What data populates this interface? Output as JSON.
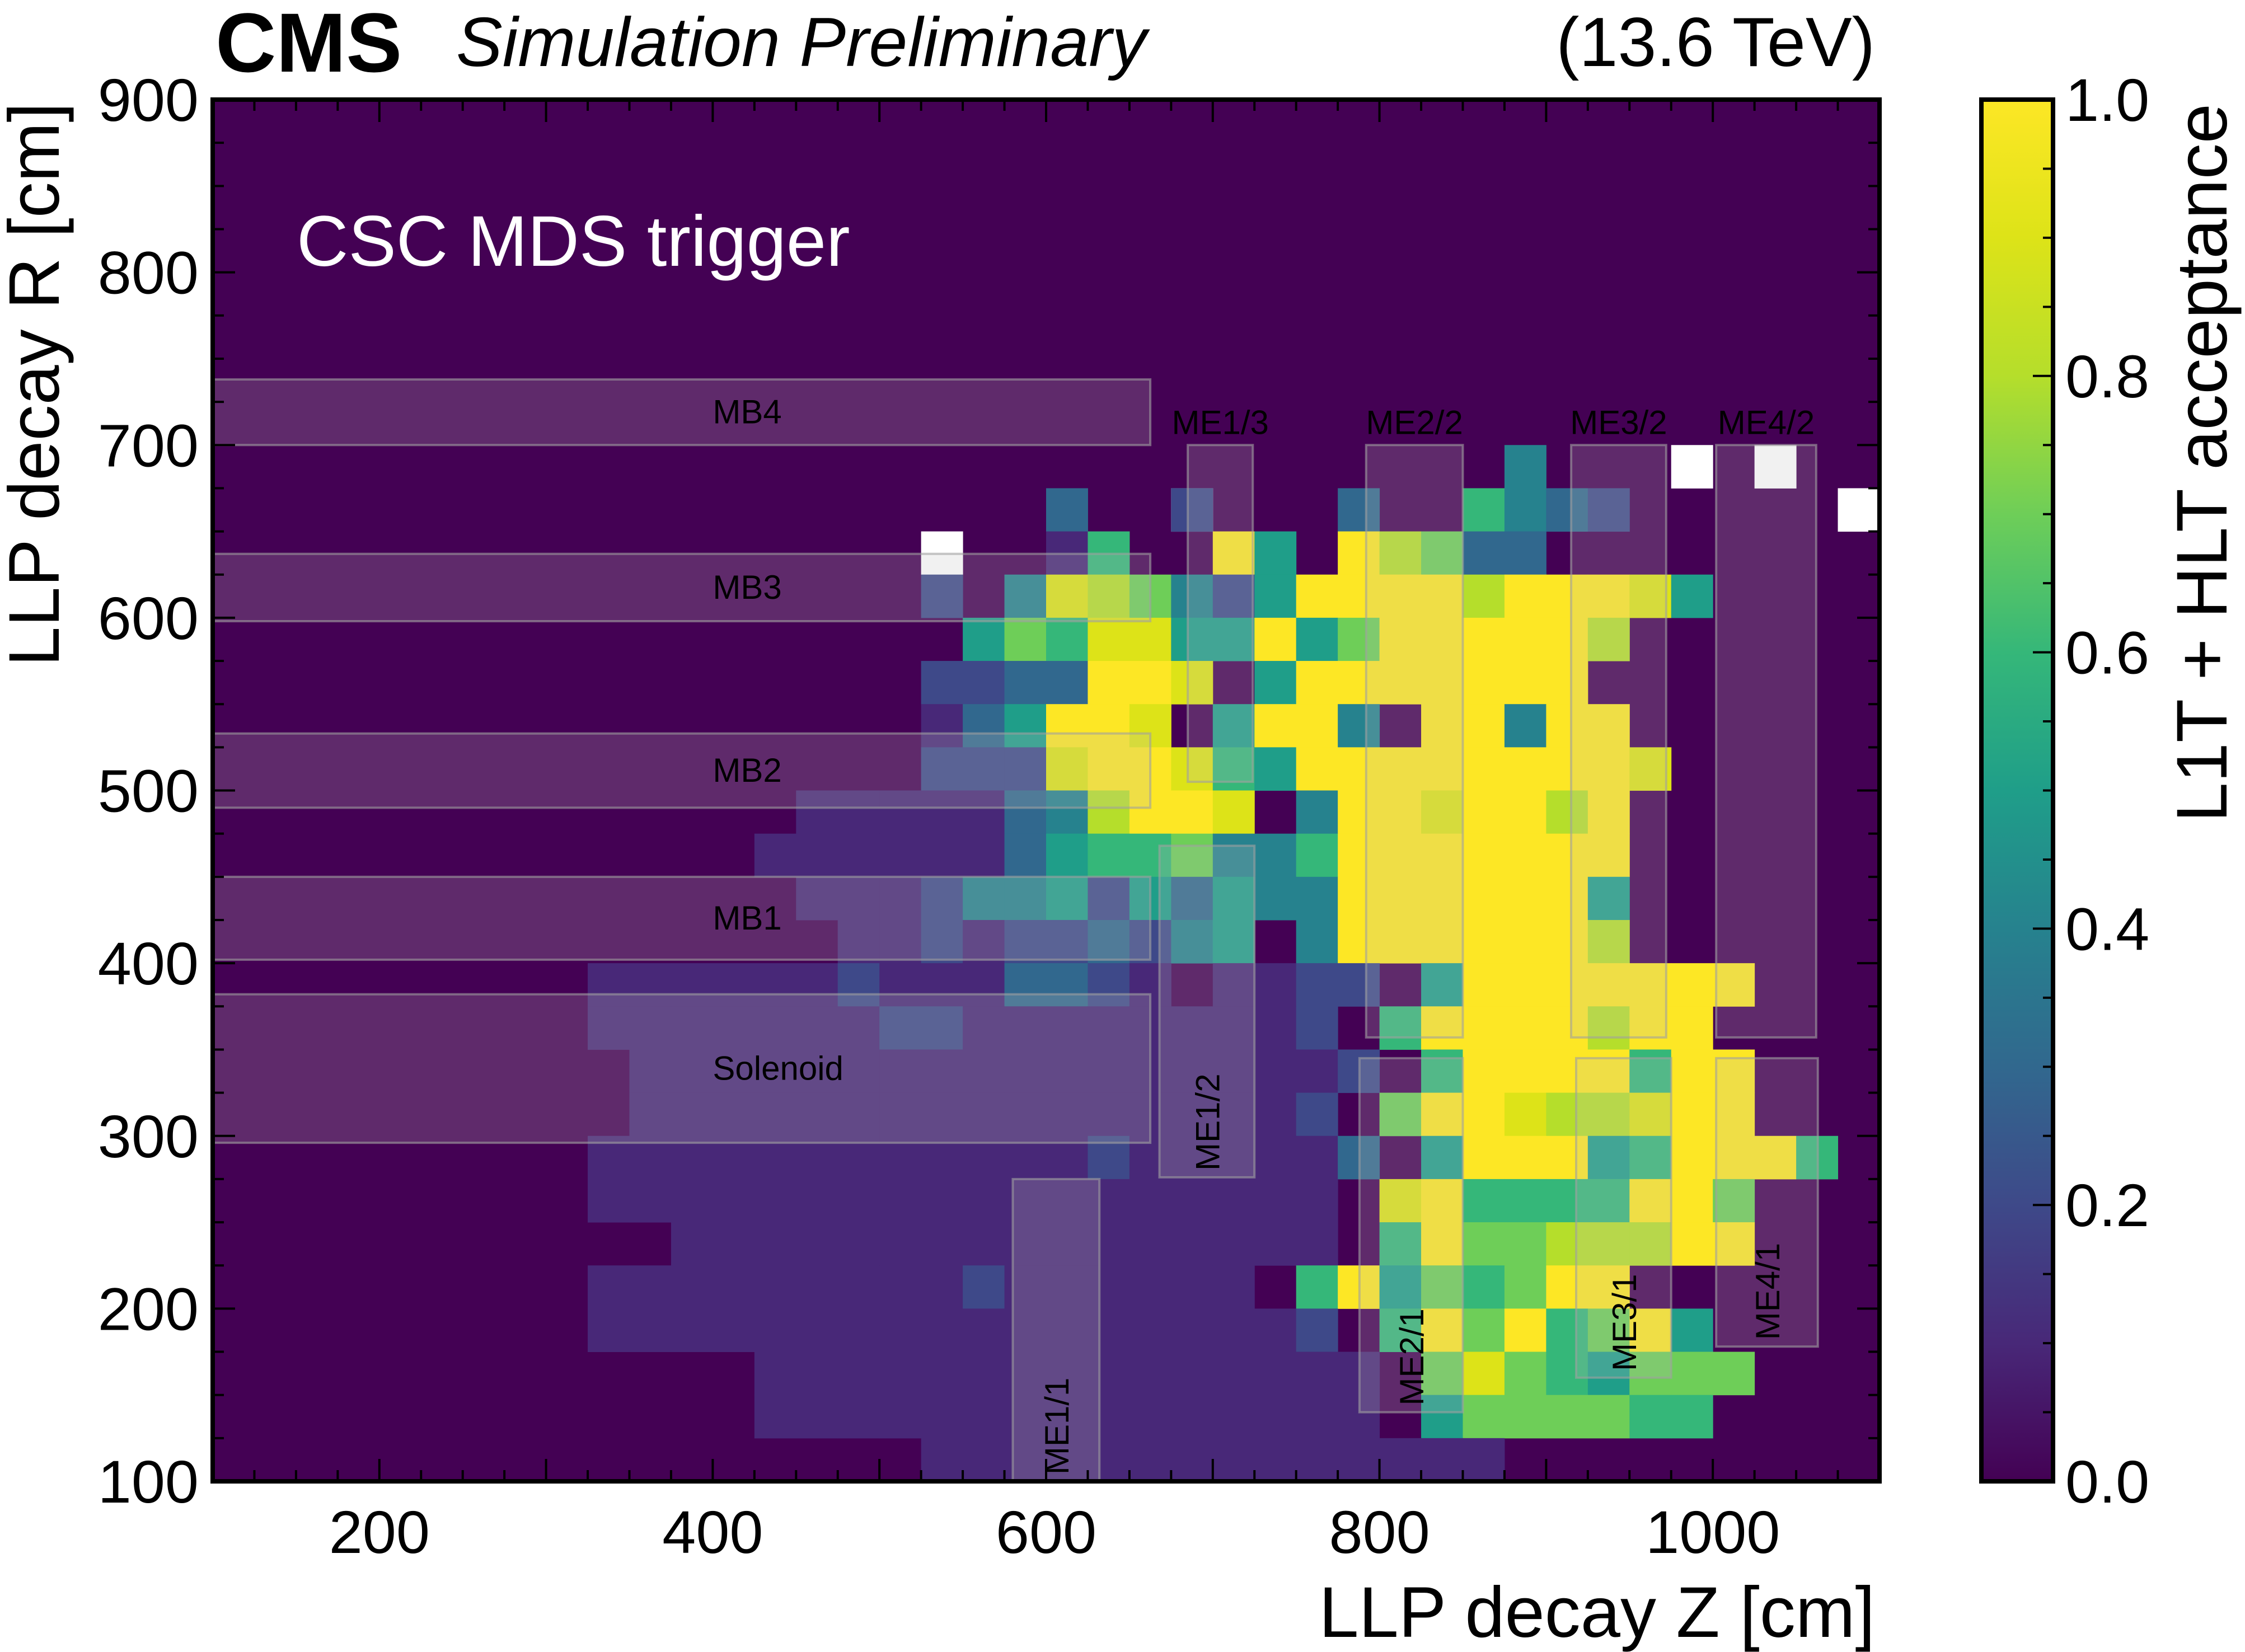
{
  "header": {
    "experiment": "CMS",
    "status": "Simulation Preliminary",
    "energy": "(13.6 TeV)"
  },
  "annotation": "CSC MDS trigger",
  "chart_data": {
    "type": "heatmap",
    "title": "",
    "xlabel": "LLP decay Z [cm]",
    "ylabel": "LLP decay R [cm]",
    "zlabel": "L1T + HLT acceptance",
    "xlim": [
      100,
      1100
    ],
    "ylim": [
      100,
      900
    ],
    "xticks": [
      "200",
      "400",
      "600",
      "800",
      "1000"
    ],
    "yticks": [
      "100",
      "200",
      "300",
      "400",
      "500",
      "600",
      "700",
      "800",
      "900"
    ],
    "zlim": [
      0.0,
      1.0
    ],
    "zticks": [
      "0.0",
      "0.2",
      "0.4",
      "0.6",
      "0.8",
      "1.0"
    ],
    "colormap": "viridis",
    "background": 0.0,
    "x_bin_width": 25,
    "y_bin_width": 25,
    "cell_encoding": "each row string lists values per 25 cm Z bin starting at the given z0; digits 0-9 = acceptance 0.0-0.9, 'F' = 1.0, 'W' = empty bin with fill outside the colour scale (white), '.' = no value",
    "cells": [
      {
        "r": 662.5,
        "z0": 1087.5,
        "v": "W"
      },
      {
        "r": 662.5,
        "z0": 687.5,
        "v": "W"
      },
      {
        "r": 687.5,
        "z0": 987.5,
        "v": "W"
      },
      {
        "r": 687.5,
        "z0": 1037.5,
        "v": "W"
      },
      {
        "r": 637.5,
        "z0": 537.5,
        "v": "W"
      },
      {
        "r": 687.5,
        "z0": 887.5,
        "v": "4"
      },
      {
        "r": 662.5,
        "z0": 612.5,
        "v": "3..2...3..6432"
      },
      {
        "r": 637.5,
        "z0": 612.5,
        "v": "16..F5.F8733"
      },
      {
        "r": 612.5,
        "z0": 537.5,
        "v": "2.4987425FFFF8FFF95"
      },
      {
        "r": 587.5,
        "z0": 562.5,
        "v": "5769955F57FFFFF8"
      },
      {
        "r": 562.5,
        "z0": 537.5,
        "v": "2233FF9.5FFFFFFF"
      },
      {
        "r": 537.5,
        "z0": 537.5,
        "v": "135FF9.5FF4.FF4FF"
      },
      {
        "r": 512.5,
        "z0": 537.5,
        "v": "2229FF965FFFFFFFF9"
      },
      {
        "r": 487.5,
        "z0": 462.5,
        "v": "11111348FF9.4FF9FF8F"
      },
      {
        "r": 462.5,
        "z0": 437.5,
        "v": "11111135667446FFFFFFF"
      },
      {
        "r": 437.5,
        "z0": 462.5,
        "v": "1112445253544FFFFFF5"
      },
      {
        "r": 412.5,
        "z0": 487.5,
        "v": "1121223245.4FFFFFF8"
      },
      {
        "r": 387.5,
        "z0": 337.5,
        "v": "11111121113321.1122.5FFFFFFF"
      },
      {
        "r": 362.5,
        "z0": 337.5,
        "v": "111111122111111112.6FFFF8FF"
      },
      {
        "r": 337.5,
        "z0": 362.5,
        "v": "111111111111111112.6FFFF6FF"
      },
      {
        "r": 312.5,
        "z0": 362.5,
        "v": "11111111111111112.7FF9889FF"
      },
      {
        "r": 287.5,
        "z0": 337.5,
        "v": "1111111111112111113.5FFF56FFF6"
      },
      {
        "r": 262.5,
        "z0": 337.5,
        "v": "111111111111111111.9F6666FF7"
      },
      {
        "r": 237.5,
        "z0": 387.5,
        "v": "1111111111111111.6F77888FF"
      },
      {
        "r": 212.5,
        "z0": 337.5,
        "v": "1111111112111111.6F5767FF"
      },
      {
        "r": 187.5,
        "z0": 337.5,
        "v": "111111111111111112.6F7F67F5"
      },
      {
        "r": 162.5,
        "z0": 437.5,
        "v": "111111111111111.79765777"
      },
      {
        "r": 137.5,
        "z0": 437.5,
        "v": "111111111111111.5777766"
      },
      {
        "r": 112.5,
        "z0": 537.5,
        "v": "11111111111111"
      }
    ]
  },
  "overlays": {
    "barrel": [
      {
        "label": "MB4",
        "zmax": 662.5,
        "rmin": 700,
        "rmax": 738
      },
      {
        "label": "MB3",
        "zmax": 662.5,
        "rmin": 598,
        "rmax": 637
      },
      {
        "label": "MB2",
        "zmax": 662.5,
        "rmin": 490,
        "rmax": 533
      },
      {
        "label": "MB1",
        "zmax": 662.5,
        "rmin": 402,
        "rmax": 450
      },
      {
        "label": "Solenoid",
        "zmax": 662.5,
        "rmin": 296,
        "rmax": 382
      }
    ],
    "endcap": [
      {
        "label": "ME1/1",
        "zmin": 580,
        "zmax": 632,
        "rmin": 100,
        "rmax": 275,
        "vertical": true
      },
      {
        "label": "ME1/2",
        "zmin": 668,
        "zmax": 725,
        "rmin": 276,
        "rmax": 468,
        "vertical": true
      },
      {
        "label": "ME1/3",
        "zmin": 685,
        "zmax": 724,
        "rmin": 505,
        "rmax": 700,
        "vertical": false
      },
      {
        "label": "ME2/1",
        "zmin": 788,
        "zmax": 850,
        "rmin": 140,
        "rmax": 345,
        "vertical": true
      },
      {
        "label": "ME2/2",
        "zmin": 792,
        "zmax": 850,
        "rmin": 357,
        "rmax": 700,
        "vertical": false
      },
      {
        "label": "ME3/1",
        "zmin": 918,
        "zmax": 975,
        "rmin": 160,
        "rmax": 345,
        "vertical": true
      },
      {
        "label": "ME3/2",
        "zmin": 915,
        "zmax": 972,
        "rmin": 357,
        "rmax": 700,
        "vertical": false
      },
      {
        "label": "ME4/1",
        "zmin": 1002,
        "zmax": 1063,
        "rmin": 178,
        "rmax": 345,
        "vertical": true
      },
      {
        "label": "ME4/2",
        "zmin": 1002,
        "zmax": 1062,
        "rmin": 357,
        "rmax": 700,
        "vertical": false
      }
    ]
  }
}
